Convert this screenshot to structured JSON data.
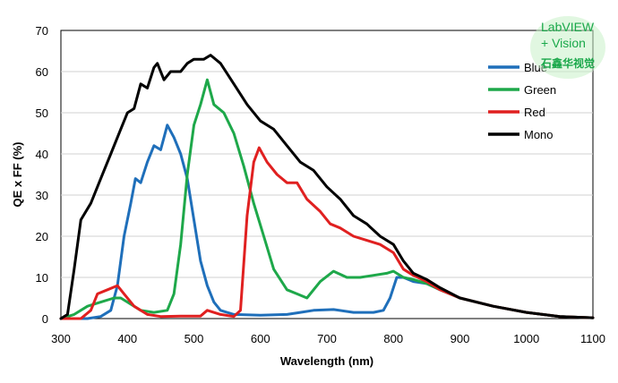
{
  "chart_data": {
    "type": "line",
    "title": "",
    "xlabel": "Wavelength (nm)",
    "ylabel": "QE x FF (%)",
    "xlim": [
      300,
      1100
    ],
    "ylim": [
      0,
      70
    ],
    "xticks": [
      300,
      400,
      500,
      600,
      700,
      800,
      900,
      1000,
      1100
    ],
    "yticks": [
      0,
      10,
      20,
      30,
      40,
      50,
      60,
      70
    ],
    "grid": "y",
    "legend": "top-right",
    "series": [
      {
        "name": "Blue",
        "color": "#1f6fba",
        "points": [
          [
            300,
            0
          ],
          [
            340,
            0
          ],
          [
            360,
            0.5
          ],
          [
            375,
            2
          ],
          [
            385,
            8
          ],
          [
            395,
            20
          ],
          [
            405,
            28
          ],
          [
            412,
            34
          ],
          [
            420,
            33
          ],
          [
            430,
            38
          ],
          [
            440,
            42
          ],
          [
            450,
            41
          ],
          [
            460,
            47
          ],
          [
            470,
            44
          ],
          [
            480,
            40
          ],
          [
            490,
            34
          ],
          [
            500,
            24
          ],
          [
            510,
            14
          ],
          [
            520,
            8
          ],
          [
            530,
            4
          ],
          [
            540,
            2
          ],
          [
            560,
            1
          ],
          [
            600,
            0.8
          ],
          [
            640,
            1
          ],
          [
            660,
            1.5
          ],
          [
            680,
            2
          ],
          [
            710,
            2.2
          ],
          [
            740,
            1.5
          ],
          [
            770,
            1.5
          ],
          [
            785,
            2
          ],
          [
            795,
            5
          ],
          [
            805,
            10
          ],
          [
            815,
            10
          ],
          [
            830,
            9
          ],
          [
            850,
            8.5
          ],
          [
            870,
            7
          ],
          [
            900,
            5
          ],
          [
            950,
            3
          ],
          [
            1000,
            1.5
          ],
          [
            1050,
            0.5
          ],
          [
            1100,
            0.2
          ]
        ]
      },
      {
        "name": "Green",
        "color": "#1ea84a",
        "points": [
          [
            300,
            0
          ],
          [
            320,
            1
          ],
          [
            340,
            3
          ],
          [
            360,
            4
          ],
          [
            380,
            5
          ],
          [
            390,
            5
          ],
          [
            400,
            4
          ],
          [
            420,
            2
          ],
          [
            440,
            1.5
          ],
          [
            460,
            2
          ],
          [
            470,
            6
          ],
          [
            480,
            18
          ],
          [
            490,
            35
          ],
          [
            500,
            47
          ],
          [
            510,
            52
          ],
          [
            520,
            58
          ],
          [
            530,
            52
          ],
          [
            545,
            50
          ],
          [
            560,
            45
          ],
          [
            575,
            37
          ],
          [
            590,
            28
          ],
          [
            605,
            20
          ],
          [
            620,
            12
          ],
          [
            640,
            7
          ],
          [
            655,
            6
          ],
          [
            670,
            5
          ],
          [
            690,
            9
          ],
          [
            710,
            11.5
          ],
          [
            730,
            10
          ],
          [
            750,
            10
          ],
          [
            770,
            10.5
          ],
          [
            790,
            11
          ],
          [
            800,
            11.5
          ],
          [
            815,
            10
          ],
          [
            830,
            9.5
          ],
          [
            850,
            8.5
          ],
          [
            870,
            7
          ],
          [
            900,
            5
          ],
          [
            950,
            3
          ],
          [
            1000,
            1.5
          ],
          [
            1050,
            0.5
          ],
          [
            1100,
            0.2
          ]
        ]
      },
      {
        "name": "Red",
        "color": "#e02020",
        "points": [
          [
            300,
            0
          ],
          [
            330,
            0
          ],
          [
            345,
            2
          ],
          [
            355,
            6
          ],
          [
            370,
            7
          ],
          [
            385,
            8
          ],
          [
            395,
            6
          ],
          [
            410,
            3
          ],
          [
            430,
            1
          ],
          [
            450,
            0.5
          ],
          [
            480,
            0.6
          ],
          [
            510,
            0.6
          ],
          [
            520,
            2
          ],
          [
            540,
            1
          ],
          [
            560,
            0.5
          ],
          [
            570,
            2
          ],
          [
            580,
            25
          ],
          [
            590,
            38
          ],
          [
            598,
            41.5
          ],
          [
            610,
            38
          ],
          [
            625,
            35
          ],
          [
            640,
            33
          ],
          [
            655,
            33
          ],
          [
            670,
            29
          ],
          [
            690,
            26
          ],
          [
            705,
            23
          ],
          [
            720,
            22
          ],
          [
            740,
            20
          ],
          [
            760,
            19
          ],
          [
            780,
            18
          ],
          [
            800,
            16
          ],
          [
            815,
            12
          ],
          [
            830,
            10.5
          ],
          [
            850,
            9
          ],
          [
            870,
            7
          ],
          [
            900,
            5
          ],
          [
            950,
            3
          ],
          [
            1000,
            1.5
          ],
          [
            1050,
            0.5
          ],
          [
            1100,
            0.2
          ]
        ]
      },
      {
        "name": "Mono",
        "color": "#000000",
        "points": [
          [
            300,
            0
          ],
          [
            310,
            1
          ],
          [
            320,
            12
          ],
          [
            330,
            24
          ],
          [
            345,
            28
          ],
          [
            360,
            34
          ],
          [
            375,
            40
          ],
          [
            390,
            46
          ],
          [
            400,
            50
          ],
          [
            410,
            51
          ],
          [
            420,
            57
          ],
          [
            430,
            56
          ],
          [
            440,
            61
          ],
          [
            445,
            62
          ],
          [
            455,
            58
          ],
          [
            465,
            60
          ],
          [
            480,
            60
          ],
          [
            490,
            62
          ],
          [
            500,
            63
          ],
          [
            515,
            63
          ],
          [
            525,
            64
          ],
          [
            540,
            62
          ],
          [
            560,
            57
          ],
          [
            580,
            52
          ],
          [
            600,
            48
          ],
          [
            620,
            46
          ],
          [
            640,
            42
          ],
          [
            660,
            38
          ],
          [
            680,
            36
          ],
          [
            700,
            32
          ],
          [
            720,
            29
          ],
          [
            740,
            25
          ],
          [
            760,
            23
          ],
          [
            780,
            20
          ],
          [
            800,
            18
          ],
          [
            815,
            14
          ],
          [
            830,
            11
          ],
          [
            850,
            9.5
          ],
          [
            870,
            7.5
          ],
          [
            900,
            5
          ],
          [
            950,
            3
          ],
          [
            1000,
            1.5
          ],
          [
            1050,
            0.5
          ],
          [
            1100,
            0.2
          ]
        ]
      }
    ]
  },
  "watermark": {
    "line1": "LabVIEW",
    "line2": "+ Vision",
    "line3": "石鑫华视觉"
  }
}
